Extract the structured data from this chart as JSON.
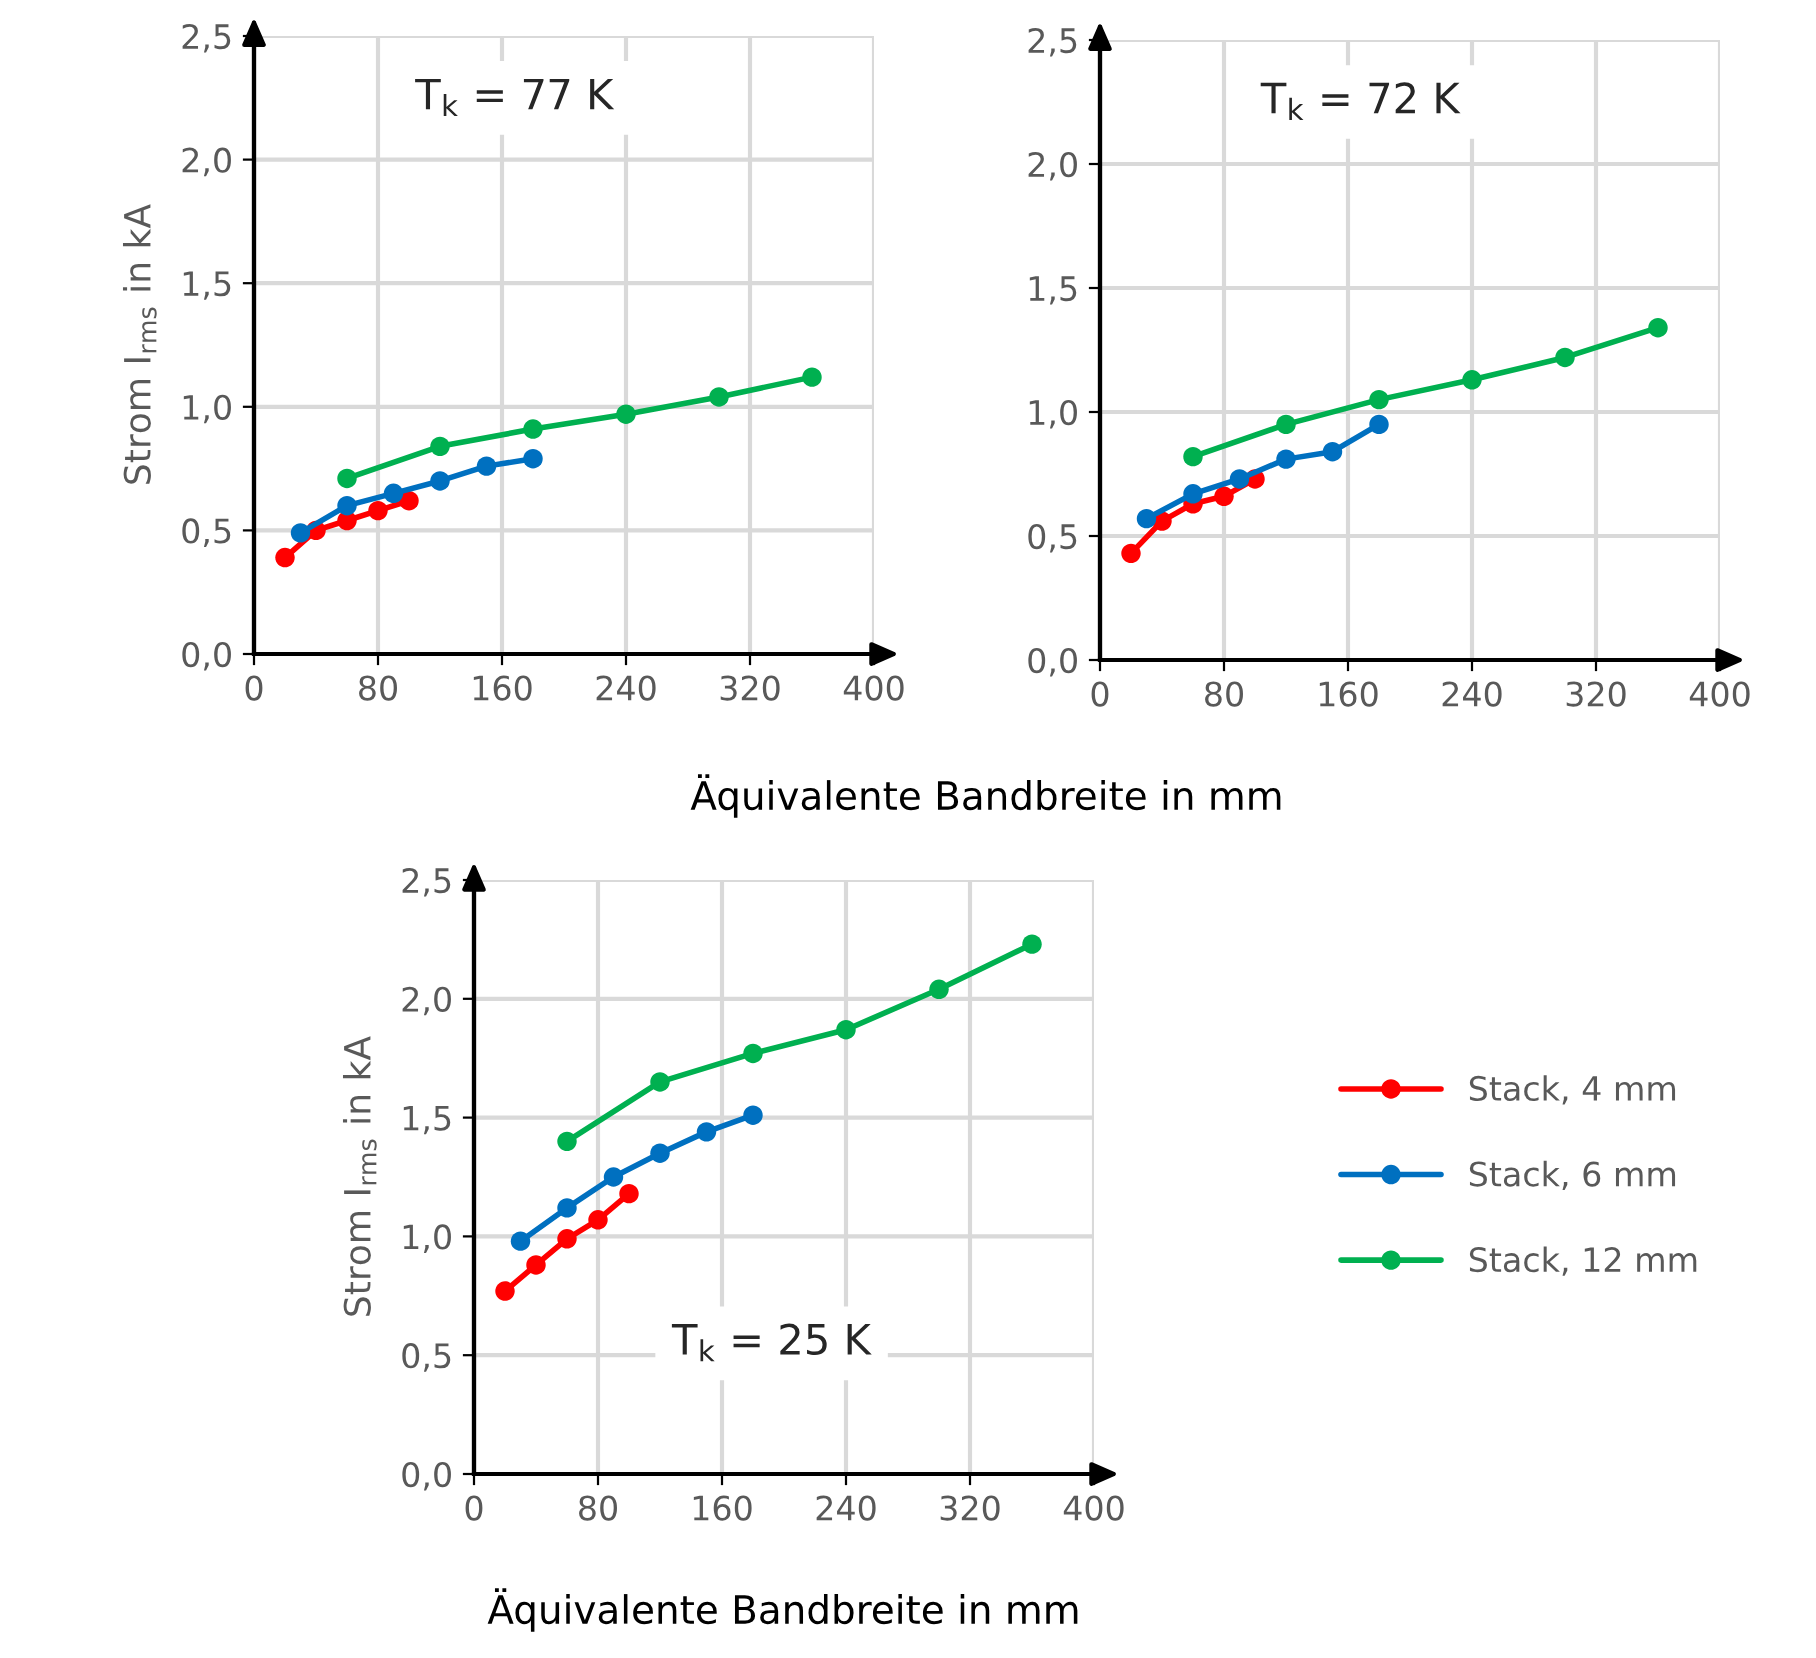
{
  "chart_data": [
    {
      "type": "line",
      "ylabel": "Strom I$_{rms}$ in kA",
      "xlabel": "Äquivalente Bandbreite in mm",
      "annotations": [
        "T$_{k}$ = 77 K"
      ],
      "xlim": [
        0,
        400
      ],
      "ylim": [
        0,
        2.5
      ],
      "xticks": [
        0,
        80,
        160,
        240,
        320,
        400
      ],
      "yticks": [
        {
          "value": 0,
          "label": "0,0"
        },
        {
          "value": 0.5,
          "label": "0,5"
        },
        {
          "value": 1,
          "label": "1,0"
        },
        {
          "value": 1.5,
          "label": "1,5"
        },
        {
          "value": 2,
          "label": "2,0"
        },
        {
          "value": 2.5,
          "label": "2,5"
        }
      ],
      "grid": true,
      "legend": false,
      "marker": "circle",
      "series": [
        {
          "color": "#ff0000",
          "x": [
            20,
            40,
            60,
            80,
            100
          ],
          "values": [
            0.39,
            0.5,
            0.54,
            0.58,
            0.62
          ]
        },
        {
          "color": "#0070c0",
          "x": [
            30,
            60,
            90,
            120,
            150,
            180
          ],
          "values": [
            0.49,
            0.6,
            0.65,
            0.7,
            0.76,
            0.79
          ]
        },
        {
          "color": "#00b050",
          "x": [
            60,
            120,
            180,
            240,
            300,
            360
          ],
          "values": [
            0.71,
            0.84,
            0.91,
            0.97,
            1.04,
            1.12
          ]
        }
      ]
    },
    {
      "type": "line",
      "annotations": [
        "T$_{k}$ = 72 K"
      ],
      "xlim": [
        0,
        400
      ],
      "ylim": [
        0,
        2.5
      ],
      "xticks": [
        0,
        80,
        160,
        240,
        320,
        400
      ],
      "yticks": [
        {
          "value": 0,
          "label": "0,0"
        },
        {
          "value": 0.5,
          "label": "0,5"
        },
        {
          "value": 1,
          "label": "1,0"
        },
        {
          "value": 1.5,
          "label": "1,5"
        },
        {
          "value": 2,
          "label": "2,0"
        },
        {
          "value": 2.5,
          "label": "2,5"
        }
      ],
      "grid": true,
      "legend": false,
      "marker": "circle",
      "series": [
        {
          "color": "#ff0000",
          "x": [
            20,
            40,
            60,
            80,
            100
          ],
          "values": [
            0.43,
            0.56,
            0.63,
            0.66,
            0.73
          ]
        },
        {
          "color": "#0070c0",
          "x": [
            30,
            60,
            90,
            120,
            150,
            180
          ],
          "values": [
            0.57,
            0.67,
            0.73,
            0.81,
            0.84,
            0.95
          ]
        },
        {
          "color": "#00b050",
          "x": [
            60,
            120,
            180,
            240,
            300,
            360
          ],
          "values": [
            0.82,
            0.95,
            1.05,
            1.13,
            1.22,
            1.34
          ]
        }
      ]
    },
    {
      "type": "line",
      "ylabel": "Strom I$_{rms}$ in kA",
      "xlabel": "Äquivalente Bandbreite in mm",
      "annotations": [
        "T$_{k}$ = 25 K"
      ],
      "xlim": [
        0,
        400
      ],
      "ylim": [
        0,
        2.5
      ],
      "xticks": [
        0,
        80,
        160,
        240,
        320,
        400
      ],
      "yticks": [
        {
          "value": 0,
          "label": "0,0"
        },
        {
          "value": 0.5,
          "label": "0,5"
        },
        {
          "value": 1,
          "label": "1,0"
        },
        {
          "value": 1.5,
          "label": "1,5"
        },
        {
          "value": 2,
          "label": "2,0"
        },
        {
          "value": 2.5,
          "label": "2,5"
        }
      ],
      "grid": true,
      "legend": "right",
      "marker": "circle",
      "series": [
        {
          "name": "Stack, 4 mm",
          "color": "#ff0000",
          "x": [
            20,
            40,
            60,
            80,
            100
          ],
          "values": [
            0.77,
            0.88,
            0.99,
            1.07,
            1.18
          ]
        },
        {
          "name": "Stack, 6 mm",
          "color": "#0070c0",
          "x": [
            30,
            60,
            90,
            120,
            150,
            180
          ],
          "values": [
            0.98,
            1.12,
            1.25,
            1.35,
            1.44,
            1.51
          ]
        },
        {
          "name": "Stack, 12 mm",
          "color": "#00b050",
          "x": [
            60,
            120,
            180,
            240,
            300,
            360
          ],
          "values": [
            1.4,
            1.65,
            1.77,
            1.87,
            2.04,
            2.23
          ]
        }
      ]
    }
  ]
}
